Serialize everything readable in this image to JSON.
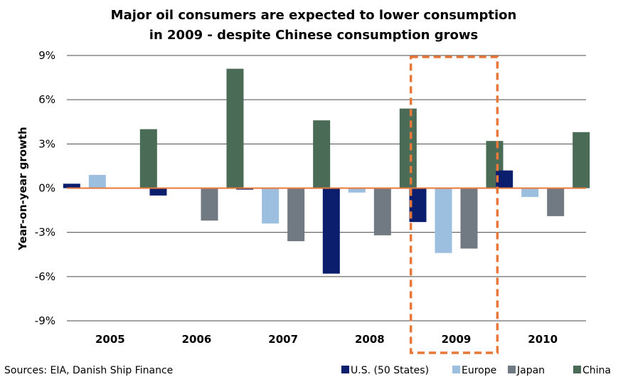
{
  "chart_data": {
    "type": "bar",
    "title": [
      "Major oil consumers are expected to lower consumption",
      "in 2009 - despite Chinese consumption grows"
    ],
    "ylabel": "Year-on-year growth",
    "xlabel": "",
    "categories": [
      "2005",
      "2006",
      "2007",
      "2008",
      "2009",
      "2010"
    ],
    "yticks": [
      "9%",
      "6%",
      "3%",
      "0%",
      "-3%",
      "-6%",
      "-9%"
    ],
    "ylim": [
      -9,
      9
    ],
    "grid": true,
    "series": [
      {
        "name": "U.S. (50 States)",
        "color": "#0b1e6e",
        "values": [
          0.3,
          -0.5,
          -0.1,
          -5.8,
          -2.3,
          1.2
        ]
      },
      {
        "name": "Europe",
        "color": "#9cbfe0",
        "values": [
          0.9,
          0.0,
          -2.4,
          -0.3,
          -4.4,
          -0.6
        ]
      },
      {
        "name": "Japan",
        "color": "#717a83",
        "values": [
          0.0,
          -2.2,
          -3.6,
          -3.2,
          -4.1,
          -1.9
        ]
      },
      {
        "name": "China",
        "color": "#4a6b56",
        "values": [
          4.0,
          8.1,
          4.6,
          5.4,
          3.2,
          3.8
        ]
      }
    ],
    "highlight": {
      "category": "2009",
      "color": "#e8773a",
      "style": "dashed box"
    },
    "zero_line_color": "#e8773a",
    "legend_position": "bottom-right",
    "source": "Sources: EIA, Danish Ship Finance"
  }
}
